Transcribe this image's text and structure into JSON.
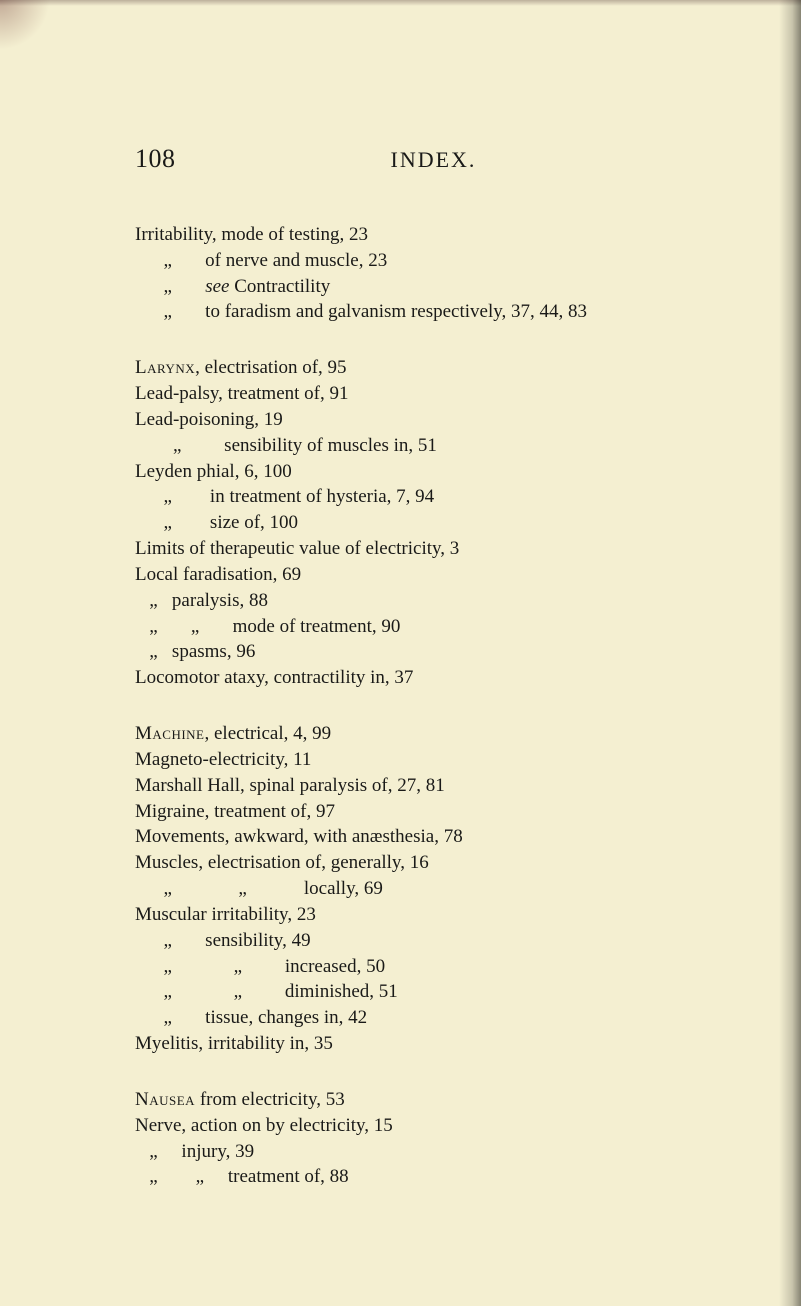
{
  "page": {
    "number": "108",
    "title": "INDEX.",
    "background_color": "#f4efd1",
    "text_color": "#1a1a18",
    "body_fontsize": 19,
    "header_number_fontsize": 26,
    "header_title_fontsize": 22
  },
  "blocks": [
    {
      "lines": [
        "Irritability, mode of testing, 23",
        "      „       of nerve and muscle, 23",
        "      „       see Contractility",
        "      „       to faradism and galvanism respectively, 37, 44, 83"
      ]
    },
    {
      "lines": [
        "Larynx, electrisation of, 95",
        "Lead-palsy, treatment of, 91",
        "Lead-poisoning, 19",
        "        „         sensibility of muscles in, 51",
        "Leyden phial, 6, 100",
        "      „        in treatment of hysteria, 7, 94",
        "      „        size of, 100",
        "Limits of therapeutic value of electricity, 3",
        "Local faradisation, 69",
        "   „   paralysis, 88",
        "   „       „       mode of treatment, 90",
        "   „   spasms, 96",
        "Locomotor ataxy, contractility in, 37"
      ]
    },
    {
      "lines": [
        "Machine, electrical, 4, 99",
        "Magneto-electricity, 11",
        "Marshall Hall, spinal paralysis of, 27, 81",
        "Migraine, treatment of, 97",
        "Movements, awkward, with anæsthesia, 78",
        "Muscles, electrisation of, generally, 16",
        "      „              „            locally, 69",
        "Muscular irritability, 23",
        "      „       sensibility, 49",
        "      „             „         increased, 50",
        "      „             „         diminished, 51",
        "      „       tissue, changes in, 42",
        "Myelitis, irritability in, 35"
      ]
    },
    {
      "lines": [
        "Nausea from electricity, 53",
        "Nerve, action on by electricity, 15",
        "   „     injury, 39",
        "   „        „     treatment of, 88"
      ]
    }
  ],
  "smallcaps_words": [
    "Larynx",
    "Machine",
    "Nausea"
  ],
  "italic_words": [
    "see"
  ]
}
